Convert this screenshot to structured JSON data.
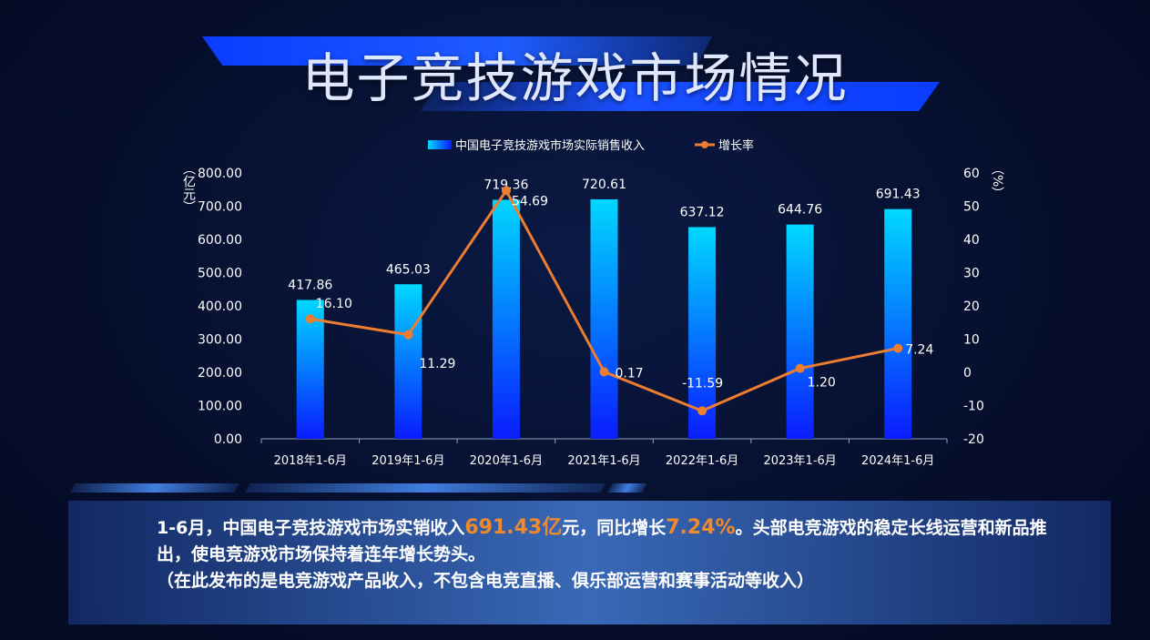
{
  "title": "电子竞技游戏市场情况",
  "legend": {
    "bar_label": "中国电子竞技游戏市场实际销售收入",
    "line_label": "增长率"
  },
  "axes": {
    "left_unit": "（亿元）",
    "right_unit": "（%）"
  },
  "colors": {
    "bar_top": "#00d8ff",
    "bar_bottom": "#0a1cff",
    "line": "#ed7d31",
    "highlight": "#f08a2c"
  },
  "chart_data": {
    "type": "bar",
    "categories": [
      "2018年1-6月",
      "2019年1-6月",
      "2020年1-6月",
      "2021年1-6月",
      "2022年1-6月",
      "2023年1-6月",
      "2024年1-6月"
    ],
    "series": [
      {
        "name": "中国电子竞技游戏市场实际销售收入",
        "type": "bar",
        "axis": "left",
        "values": [
          417.86,
          465.03,
          719.36,
          720.61,
          637.12,
          644.76,
          691.43
        ],
        "labels": [
          "417.86",
          "465.03",
          "719.36",
          "720.61",
          "637.12",
          "644.76",
          "691.43"
        ]
      },
      {
        "name": "增长率",
        "type": "line",
        "axis": "right",
        "values": [
          16.1,
          11.29,
          54.69,
          0.17,
          -11.59,
          1.2,
          7.24
        ],
        "labels": [
          "16.10",
          "11.29",
          "54.69",
          "0.17",
          "-11.59",
          "1.20",
          "7.24"
        ]
      }
    ],
    "ylim_left": [
      0,
      800
    ],
    "yticks_left": [
      "0.00",
      "100.00",
      "200.00",
      "300.00",
      "400.00",
      "500.00",
      "600.00",
      "700.00",
      "800.00"
    ],
    "ylim_right": [
      -20,
      60
    ],
    "yticks_right": [
      "-20",
      "-10",
      "0",
      "10",
      "20",
      "30",
      "40",
      "50",
      "60"
    ],
    "grid": false,
    "legend_position": "top"
  },
  "summary": {
    "p1_a": "1-6月，中国电子竞技游戏市场实销收入",
    "p1_hl1": "691.43亿",
    "p1_b": "元，同比增长",
    "p1_hl2": "7.24%",
    "p1_c": "。头部电竞游戏的稳定长线运营和新品推出，使电竞游戏市场保持着连年增长势头。",
    "note": "（在此发布的是电竞游戏产品收入，不包含电竞直播、俱乐部运营和赛事活动等收入）"
  }
}
